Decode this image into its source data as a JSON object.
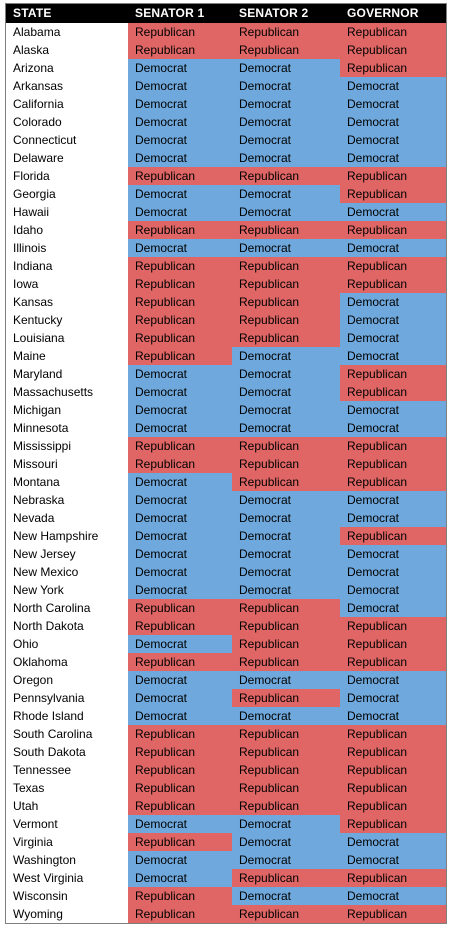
{
  "colors": {
    "democrat": "#6fa8dc",
    "republican": "#e06666",
    "header_bg": "#000000",
    "header_text": "#ffffff"
  },
  "party_labels": {
    "D": "Democrat",
    "R": "Republican"
  },
  "headers": [
    "STATE",
    "SENATOR 1",
    "SENATOR 2",
    "GOVERNOR"
  ],
  "rows": [
    {
      "state": "Alabama",
      "senator1": "Republican",
      "senator2": "Republican",
      "governor": "Republican"
    },
    {
      "state": "Alaska",
      "senator1": "Republican",
      "senator2": "Republican",
      "governor": "Republican"
    },
    {
      "state": "Arizona",
      "senator1": "Democrat",
      "senator2": "Democrat",
      "governor": "Republican"
    },
    {
      "state": "Arkansas",
      "senator1": "Democrat",
      "senator2": "Democrat",
      "governor": "Democrat"
    },
    {
      "state": "California",
      "senator1": "Democrat",
      "senator2": "Democrat",
      "governor": "Democrat"
    },
    {
      "state": "Colorado",
      "senator1": "Democrat",
      "senator2": "Democrat",
      "governor": "Democrat"
    },
    {
      "state": "Connecticut",
      "senator1": "Democrat",
      "senator2": "Democrat",
      "governor": "Democrat"
    },
    {
      "state": "Delaware",
      "senator1": "Democrat",
      "senator2": "Democrat",
      "governor": "Democrat"
    },
    {
      "state": "Florida",
      "senator1": "Republican",
      "senator2": "Republican",
      "governor": "Republican"
    },
    {
      "state": "Georgia",
      "senator1": "Democrat",
      "senator2": "Democrat",
      "governor": "Republican"
    },
    {
      "state": "Hawaii",
      "senator1": "Democrat",
      "senator2": "Democrat",
      "governor": "Democrat"
    },
    {
      "state": "Idaho",
      "senator1": "Republican",
      "senator2": "Republican",
      "governor": "Republican"
    },
    {
      "state": "Illinois",
      "senator1": "Democrat",
      "senator2": "Democrat",
      "governor": "Democrat"
    },
    {
      "state": "Indiana",
      "senator1": "Republican",
      "senator2": "Republican",
      "governor": "Republican"
    },
    {
      "state": "Iowa",
      "senator1": "Republican",
      "senator2": "Republican",
      "governor": "Republican"
    },
    {
      "state": "Kansas",
      "senator1": "Republican",
      "senator2": "Republican",
      "governor": "Democrat"
    },
    {
      "state": "Kentucky",
      "senator1": "Republican",
      "senator2": "Republican",
      "governor": "Democrat"
    },
    {
      "state": "Louisiana",
      "senator1": "Republican",
      "senator2": "Republican",
      "governor": "Democrat"
    },
    {
      "state": "Maine",
      "senator1": "Republican",
      "senator2": "Democrat",
      "governor": "Democrat"
    },
    {
      "state": "Maryland",
      "senator1": "Democrat",
      "senator2": "Democrat",
      "governor": "Republican"
    },
    {
      "state": "Massachusetts",
      "senator1": "Democrat",
      "senator2": "Democrat",
      "governor": "Republican"
    },
    {
      "state": "Michigan",
      "senator1": "Democrat",
      "senator2": "Democrat",
      "governor": "Democrat"
    },
    {
      "state": "Minnesota",
      "senator1": "Democrat",
      "senator2": "Democrat",
      "governor": "Democrat"
    },
    {
      "state": "Mississippi",
      "senator1": "Republican",
      "senator2": "Republican",
      "governor": "Republican"
    },
    {
      "state": "Missouri",
      "senator1": "Republican",
      "senator2": "Republican",
      "governor": "Republican"
    },
    {
      "state": "Montana",
      "senator1": "Democrat",
      "senator2": "Republican",
      "governor": "Republican"
    },
    {
      "state": "Nebraska",
      "senator1": "Democrat",
      "senator2": "Democrat",
      "governor": "Democrat"
    },
    {
      "state": "Nevada",
      "senator1": "Democrat",
      "senator2": "Democrat",
      "governor": "Democrat"
    },
    {
      "state": "New Hampshire",
      "senator1": "Democrat",
      "senator2": "Democrat",
      "governor": "Republican"
    },
    {
      "state": "New Jersey",
      "senator1": "Democrat",
      "senator2": "Democrat",
      "governor": "Democrat"
    },
    {
      "state": "New Mexico",
      "senator1": "Democrat",
      "senator2": "Democrat",
      "governor": "Democrat"
    },
    {
      "state": "New York",
      "senator1": "Democrat",
      "senator2": "Democrat",
      "governor": "Democrat"
    },
    {
      "state": "North Carolina",
      "senator1": "Republican",
      "senator2": "Republican",
      "governor": "Democrat"
    },
    {
      "state": "North Dakota",
      "senator1": "Republican",
      "senator2": "Republican",
      "governor": "Republican"
    },
    {
      "state": "Ohio",
      "senator1": "Democrat",
      "senator2": "Republican",
      "governor": "Republican"
    },
    {
      "state": "Oklahoma",
      "senator1": "Republican",
      "senator2": "Republican",
      "governor": "Republican"
    },
    {
      "state": "Oregon",
      "senator1": "Democrat",
      "senator2": "Democrat",
      "governor": "Democrat"
    },
    {
      "state": "Pennsylvania",
      "senator1": "Democrat",
      "senator2": "Republican",
      "governor": "Democrat"
    },
    {
      "state": "Rhode Island",
      "senator1": "Democrat",
      "senator2": "Democrat",
      "governor": "Democrat"
    },
    {
      "state": "South Carolina",
      "senator1": "Republican",
      "senator2": "Republican",
      "governor": "Republican"
    },
    {
      "state": "South Dakota",
      "senator1": "Republican",
      "senator2": "Republican",
      "governor": "Republican"
    },
    {
      "state": "Tennessee",
      "senator1": "Republican",
      "senator2": "Republican",
      "governor": "Republican"
    },
    {
      "state": "Texas",
      "senator1": "Republican",
      "senator2": "Republican",
      "governor": "Republican"
    },
    {
      "state": "Utah",
      "senator1": "Republican",
      "senator2": "Republican",
      "governor": "Republican"
    },
    {
      "state": "Vermont",
      "senator1": "Democrat",
      "senator2": "Democrat",
      "governor": "Republican"
    },
    {
      "state": "Virginia",
      "senator1": "Republican",
      "senator2": "Democrat",
      "governor": "Democrat"
    },
    {
      "state": "Washington",
      "senator1": "Democrat",
      "senator2": "Democrat",
      "governor": "Democrat"
    },
    {
      "state": "West Virginia",
      "senator1": "Democrat",
      "senator2": "Republican",
      "governor": "Republican"
    },
    {
      "state": "Wisconsin",
      "senator1": "Republican",
      "senator2": "Democrat",
      "governor": "Democrat"
    },
    {
      "state": "Wyoming",
      "senator1": "Republican",
      "senator2": "Republican",
      "governor": "Republican"
    }
  ]
}
